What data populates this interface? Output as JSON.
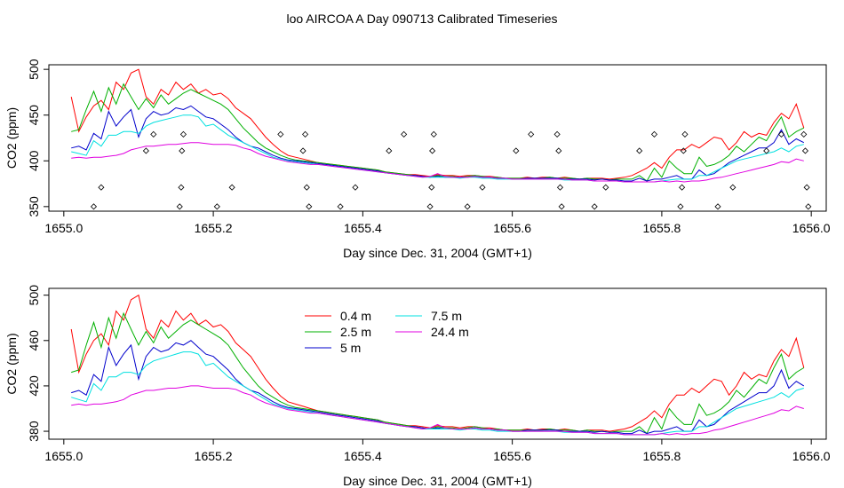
{
  "title": "loo AIRCOA A  Day 090713  Calibrated Timeseries",
  "chart_data": [
    {
      "type": "line",
      "xlabel": "Day since Dec. 31, 2004 (GMT+1)",
      "ylabel": "CO2 (ppm)",
      "xlim": [
        1654.98,
        1656.02
      ],
      "ylim": [
        345,
        505
      ],
      "x_ticks": [
        "1655.0",
        "1655.2",
        "1655.4",
        "1655.6",
        "1655.8",
        "1656.0"
      ],
      "y_ticks": [
        "350",
        "400",
        "450",
        "500"
      ],
      "legend": "none",
      "grid": false,
      "flag_points": [
        [
          1655.04,
          350
        ],
        [
          1655.05,
          371
        ],
        [
          1655.11,
          411
        ],
        [
          1655.12,
          429
        ],
        [
          1655.155,
          350
        ],
        [
          1655.157,
          371
        ],
        [
          1655.158,
          411
        ],
        [
          1655.16,
          429
        ],
        [
          1655.205,
          350
        ],
        [
          1655.225,
          371
        ],
        [
          1655.29,
          429
        ],
        [
          1655.32,
          411
        ],
        [
          1655.323,
          429
        ],
        [
          1655.325,
          371
        ],
        [
          1655.328,
          350
        ],
        [
          1655.37,
          350
        ],
        [
          1655.39,
          371
        ],
        [
          1655.435,
          411
        ],
        [
          1655.455,
          429
        ],
        [
          1655.49,
          350
        ],
        [
          1655.492,
          371
        ],
        [
          1655.493,
          411
        ],
        [
          1655.495,
          429
        ],
        [
          1655.54,
          350
        ],
        [
          1655.56,
          371
        ],
        [
          1655.605,
          411
        ],
        [
          1655.625,
          429
        ],
        [
          1655.66,
          429
        ],
        [
          1655.662,
          411
        ],
        [
          1655.664,
          371
        ],
        [
          1655.666,
          350
        ],
        [
          1655.71,
          350
        ],
        [
          1655.725,
          371
        ],
        [
          1655.77,
          411
        ],
        [
          1655.79,
          429
        ],
        [
          1655.825,
          350
        ],
        [
          1655.827,
          371
        ],
        [
          1655.829,
          411
        ],
        [
          1655.831,
          429
        ],
        [
          1655.875,
          350
        ],
        [
          1655.895,
          371
        ],
        [
          1655.94,
          411
        ],
        [
          1655.96,
          429
        ],
        [
          1655.99,
          429
        ],
        [
          1655.992,
          411
        ],
        [
          1655.994,
          371
        ],
        [
          1655.996,
          350
        ]
      ]
    },
    {
      "type": "line",
      "xlabel": "Day since Dec. 31, 2004 (GMT+1)",
      "ylabel": "CO2 (ppm)",
      "xlim": [
        1654.98,
        1656.02
      ],
      "ylim": [
        373,
        506
      ],
      "x_ticks": [
        "1655.0",
        "1655.2",
        "1655.4",
        "1655.6",
        "1655.8",
        "1656.0"
      ],
      "y_ticks": [
        "380",
        "420",
        "460",
        "500"
      ],
      "legend": "top-left",
      "grid": false
    }
  ],
  "series_x": [
    1655.01,
    1655.02,
    1655.03,
    1655.04,
    1655.05,
    1655.06,
    1655.07,
    1655.08,
    1655.09,
    1655.1,
    1655.11,
    1655.12,
    1655.13,
    1655.14,
    1655.15,
    1655.16,
    1655.17,
    1655.18,
    1655.19,
    1655.2,
    1655.21,
    1655.22,
    1655.23,
    1655.24,
    1655.25,
    1655.26,
    1655.27,
    1655.28,
    1655.29,
    1655.3,
    1655.31,
    1655.32,
    1655.33,
    1655.34,
    1655.35,
    1655.36,
    1655.37,
    1655.38,
    1655.39,
    1655.4,
    1655.41,
    1655.42,
    1655.43,
    1655.44,
    1655.45,
    1655.46,
    1655.47,
    1655.48,
    1655.49,
    1655.5,
    1655.51,
    1655.52,
    1655.53,
    1655.54,
    1655.55,
    1655.56,
    1655.57,
    1655.58,
    1655.59,
    1655.6,
    1655.61,
    1655.62,
    1655.63,
    1655.64,
    1655.65,
    1655.66,
    1655.67,
    1655.68,
    1655.69,
    1655.7,
    1655.71,
    1655.72,
    1655.73,
    1655.74,
    1655.75,
    1655.76,
    1655.77,
    1655.78,
    1655.79,
    1655.8,
    1655.81,
    1655.82,
    1655.83,
    1655.84,
    1655.85,
    1655.86,
    1655.87,
    1655.88,
    1655.89,
    1655.9,
    1655.91,
    1655.92,
    1655.93,
    1655.94,
    1655.95,
    1655.96,
    1655.97,
    1655.98,
    1655.99
  ],
  "series": [
    {
      "name": "0.4 m",
      "color": "#ff0000",
      "values": [
        470,
        432,
        448,
        460,
        466,
        456,
        486,
        478,
        496,
        500,
        470,
        462,
        478,
        472,
        486,
        478,
        484,
        474,
        478,
        472,
        474,
        468,
        458,
        452,
        446,
        436,
        426,
        418,
        411,
        406,
        404,
        402,
        400,
        398,
        397,
        396,
        395,
        394,
        393,
        392,
        391,
        390,
        388,
        387,
        386,
        385,
        385,
        384,
        383,
        385,
        384,
        384,
        383,
        384,
        384,
        383,
        383,
        382,
        381,
        381,
        381,
        382,
        381,
        382,
        382,
        381,
        382,
        381,
        380,
        381,
        381,
        381,
        380,
        381,
        382,
        384,
        388,
        392,
        398,
        392,
        404,
        412,
        412,
        418,
        414,
        420,
        426,
        424,
        412,
        420,
        432,
        426,
        430,
        428,
        442,
        452,
        446,
        462,
        436
      ]
    },
    {
      "name": "2.5 m",
      "color": "#00b000",
      "values": [
        432,
        434,
        456,
        476,
        454,
        480,
        462,
        484,
        470,
        456,
        468,
        458,
        472,
        462,
        468,
        474,
        478,
        474,
        470,
        466,
        462,
        456,
        446,
        436,
        428,
        420,
        414,
        410,
        406,
        403,
        401,
        400,
        399,
        398,
        397,
        396,
        395,
        394,
        393,
        392,
        391,
        390,
        388,
        387,
        386,
        385,
        384,
        383,
        382,
        384,
        383,
        383,
        382,
        383,
        384,
        383,
        382,
        382,
        381,
        381,
        381,
        381,
        381,
        381,
        382,
        381,
        381,
        381,
        380,
        381,
        380,
        380,
        379,
        380,
        380,
        380,
        384,
        378,
        392,
        382,
        400,
        392,
        386,
        386,
        404,
        394,
        396,
        400,
        406,
        416,
        410,
        418,
        426,
        422,
        436,
        448,
        426,
        432,
        436
      ]
    },
    {
      "name": "5 m",
      "color": "#0000cc",
      "values": [
        414,
        416,
        412,
        430,
        424,
        454,
        438,
        448,
        456,
        426,
        446,
        454,
        450,
        452,
        458,
        456,
        460,
        454,
        448,
        446,
        440,
        434,
        426,
        420,
        416,
        414,
        410,
        406,
        403,
        401,
        400,
        399,
        398,
        397,
        396,
        395,
        394,
        393,
        392,
        391,
        390,
        389,
        387,
        386,
        385,
        384,
        384,
        383,
        382,
        383,
        382,
        382,
        382,
        382,
        383,
        382,
        382,
        381,
        381,
        380,
        380,
        381,
        381,
        381,
        381,
        381,
        380,
        380,
        380,
        380,
        379,
        380,
        379,
        379,
        378,
        378,
        381,
        378,
        380,
        380,
        382,
        384,
        380,
        380,
        390,
        384,
        386,
        392,
        398,
        402,
        406,
        410,
        414,
        414,
        420,
        434,
        418,
        424,
        420
      ]
    },
    {
      "name": "7.5 m",
      "color": "#00e0e0",
      "values": [
        410,
        408,
        406,
        422,
        416,
        428,
        428,
        432,
        432,
        430,
        438,
        442,
        444,
        446,
        448,
        450,
        450,
        448,
        438,
        440,
        434,
        428,
        424,
        420,
        416,
        412,
        408,
        404,
        402,
        400,
        399,
        398,
        397,
        396,
        395,
        394,
        393,
        392,
        391,
        390,
        389,
        388,
        387,
        386,
        385,
        384,
        383,
        382,
        382,
        382,
        382,
        382,
        381,
        382,
        382,
        381,
        381,
        380,
        380,
        380,
        380,
        380,
        380,
        380,
        380,
        380,
        379,
        379,
        379,
        379,
        378,
        378,
        378,
        378,
        377,
        377,
        377,
        377,
        377,
        378,
        379,
        380,
        380,
        380,
        384,
        384,
        388,
        392,
        396,
        400,
        402,
        404,
        406,
        408,
        410,
        414,
        410,
        416,
        418
      ]
    },
    {
      "name": "24.4 m",
      "color": "#e000e0",
      "values": [
        403,
        404,
        403,
        404,
        404,
        405,
        406,
        408,
        412,
        414,
        416,
        416,
        417,
        418,
        418,
        419,
        420,
        420,
        419,
        418,
        418,
        418,
        417,
        414,
        412,
        408,
        405,
        403,
        401,
        399,
        398,
        397,
        396,
        396,
        395,
        394,
        393,
        392,
        391,
        390,
        389,
        388,
        387,
        386,
        385,
        384,
        383,
        382,
        383,
        386,
        383,
        382,
        382,
        382,
        383,
        382,
        382,
        381,
        381,
        380,
        380,
        380,
        380,
        380,
        380,
        380,
        380,
        379,
        379,
        379,
        378,
        378,
        378,
        378,
        377,
        377,
        377,
        377,
        377,
        378,
        377,
        378,
        377,
        378,
        378,
        379,
        381,
        382,
        384,
        386,
        388,
        390,
        392,
        394,
        396,
        399,
        398,
        402,
        400
      ]
    }
  ]
}
